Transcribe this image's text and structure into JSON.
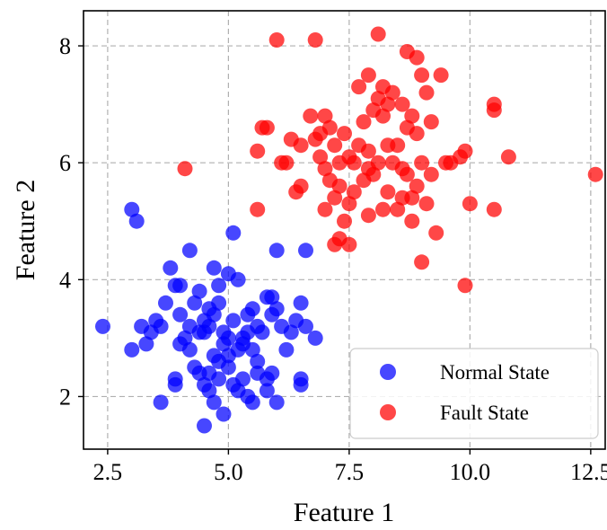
{
  "chart_data": {
    "type": "scatter",
    "title": "",
    "xlabel": "Feature 1",
    "ylabel": "Feature 2",
    "xlim": [
      2.0,
      12.8
    ],
    "ylim": [
      1.1,
      8.6
    ],
    "xticks": [
      "2.5",
      "5.0",
      "7.5",
      "10.0",
      "12.5"
    ],
    "yticks": [
      "2",
      "4",
      "6",
      "8"
    ],
    "grid": true,
    "legend_position": "lower-right",
    "series": [
      {
        "name": "Normal State",
        "color": "#0000ff",
        "points": [
          [
            2.4,
            3.2
          ],
          [
            3.0,
            5.2
          ],
          [
            3.1,
            5.0
          ],
          [
            3.0,
            2.8
          ],
          [
            3.2,
            3.2
          ],
          [
            3.3,
            2.9
          ],
          [
            3.5,
            3.3
          ],
          [
            3.6,
            3.2
          ],
          [
            3.7,
            3.6
          ],
          [
            3.6,
            1.9
          ],
          [
            3.8,
            4.2
          ],
          [
            3.9,
            3.9
          ],
          [
            4.0,
            3.9
          ],
          [
            4.0,
            3.4
          ],
          [
            4.2,
            4.5
          ],
          [
            4.3,
            3.6
          ],
          [
            4.1,
            3.0
          ],
          [
            4.2,
            2.8
          ],
          [
            3.9,
            2.3
          ],
          [
            3.9,
            2.2
          ],
          [
            4.3,
            2.5
          ],
          [
            4.4,
            2.4
          ],
          [
            4.5,
            2.2
          ],
          [
            4.5,
            3.3
          ],
          [
            4.6,
            3.2
          ],
          [
            4.6,
            3.5
          ],
          [
            4.7,
            3.4
          ],
          [
            4.5,
            3.1
          ],
          [
            4.4,
            3.1
          ],
          [
            4.7,
            4.2
          ],
          [
            4.6,
            2.1
          ],
          [
            4.5,
            1.5
          ],
          [
            4.7,
            1.9
          ],
          [
            4.8,
            2.3
          ],
          [
            4.8,
            2.6
          ],
          [
            4.9,
            2.9
          ],
          [
            4.8,
            3.6
          ],
          [
            4.9,
            3.1
          ],
          [
            4.9,
            1.7
          ],
          [
            5.0,
            3.0
          ],
          [
            5.0,
            2.7
          ],
          [
            5.0,
            4.1
          ],
          [
            5.1,
            4.8
          ],
          [
            5.1,
            2.2
          ],
          [
            5.2,
            4.0
          ],
          [
            5.2,
            2.8
          ],
          [
            5.2,
            2.1
          ],
          [
            5.3,
            3.0
          ],
          [
            5.3,
            2.9
          ],
          [
            5.4,
            3.1
          ],
          [
            5.4,
            3.4
          ],
          [
            5.3,
            2.3
          ],
          [
            5.4,
            2.0
          ],
          [
            5.5,
            1.9
          ],
          [
            5.5,
            2.8
          ],
          [
            5.6,
            3.2
          ],
          [
            5.6,
            2.4
          ],
          [
            5.7,
            3.1
          ],
          [
            5.8,
            3.7
          ],
          [
            5.8,
            2.3
          ],
          [
            5.9,
            3.7
          ],
          [
            5.9,
            3.4
          ],
          [
            5.9,
            2.4
          ],
          [
            6.0,
            4.5
          ],
          [
            6.0,
            3.5
          ],
          [
            6.1,
            3.2
          ],
          [
            6.0,
            1.9
          ],
          [
            6.4,
            3.3
          ],
          [
            6.5,
            3.6
          ],
          [
            6.5,
            2.3
          ],
          [
            6.5,
            2.2
          ],
          [
            6.6,
            4.5
          ],
          [
            6.6,
            3.2
          ],
          [
            6.8,
            3.0
          ],
          [
            4.2,
            3.2
          ],
          [
            4.4,
            3.8
          ],
          [
            4.7,
            2.7
          ],
          [
            5.1,
            3.3
          ],
          [
            5.5,
            3.5
          ],
          [
            6.2,
            2.8
          ],
          [
            4.0,
            2.9
          ],
          [
            4.6,
            2.4
          ],
          [
            5.6,
            2.6
          ],
          [
            4.8,
            3.9
          ],
          [
            5.0,
            2.5
          ],
          [
            3.4,
            3.1
          ],
          [
            5.8,
            2.1
          ],
          [
            6.3,
            3.1
          ]
        ]
      },
      {
        "name": "Fault State",
        "color": "#ff0000",
        "points": [
          [
            4.1,
            5.9
          ],
          [
            5.6,
            5.2
          ],
          [
            5.6,
            6.2
          ],
          [
            5.7,
            6.6
          ],
          [
            6.0,
            8.1
          ],
          [
            6.1,
            6.0
          ],
          [
            6.2,
            6.0
          ],
          [
            6.3,
            6.4
          ],
          [
            6.4,
            5.5
          ],
          [
            6.5,
            5.6
          ],
          [
            6.5,
            6.3
          ],
          [
            6.7,
            6.8
          ],
          [
            6.8,
            8.1
          ],
          [
            6.8,
            6.4
          ],
          [
            6.9,
            6.5
          ],
          [
            6.9,
            6.1
          ],
          [
            7.0,
            5.9
          ],
          [
            7.0,
            5.2
          ],
          [
            7.1,
            6.6
          ],
          [
            7.1,
            5.7
          ],
          [
            7.2,
            5.4
          ],
          [
            7.2,
            6.3
          ],
          [
            7.2,
            4.6
          ],
          [
            7.3,
            4.7
          ],
          [
            7.3,
            5.6
          ],
          [
            7.3,
            6.0
          ],
          [
            7.4,
            6.5
          ],
          [
            7.4,
            5.0
          ],
          [
            7.5,
            5.3
          ],
          [
            7.5,
            6.1
          ],
          [
            7.5,
            4.6
          ],
          [
            7.6,
            6.0
          ],
          [
            7.6,
            5.5
          ],
          [
            7.7,
            7.3
          ],
          [
            7.7,
            6.3
          ],
          [
            7.8,
            6.7
          ],
          [
            7.8,
            5.7
          ],
          [
            7.9,
            7.5
          ],
          [
            7.9,
            6.2
          ],
          [
            7.9,
            5.1
          ],
          [
            8.0,
            6.9
          ],
          [
            8.0,
            5.8
          ],
          [
            8.1,
            8.2
          ],
          [
            8.1,
            7.1
          ],
          [
            8.1,
            6.0
          ],
          [
            8.2,
            7.3
          ],
          [
            8.2,
            6.8
          ],
          [
            8.2,
            5.2
          ],
          [
            8.3,
            7.0
          ],
          [
            8.3,
            5.5
          ],
          [
            8.4,
            7.2
          ],
          [
            8.4,
            6.0
          ],
          [
            8.5,
            5.2
          ],
          [
            8.5,
            6.3
          ],
          [
            8.6,
            7.0
          ],
          [
            8.6,
            5.4
          ],
          [
            8.7,
            7.9
          ],
          [
            8.7,
            6.6
          ],
          [
            8.7,
            5.8
          ],
          [
            8.8,
            6.8
          ],
          [
            8.8,
            5.4
          ],
          [
            8.8,
            5.0
          ],
          [
            8.9,
            7.8
          ],
          [
            8.9,
            6.5
          ],
          [
            8.9,
            5.6
          ],
          [
            9.0,
            7.5
          ],
          [
            9.0,
            6.0
          ],
          [
            9.0,
            4.3
          ],
          [
            9.1,
            7.2
          ],
          [
            9.1,
            5.3
          ],
          [
            9.2,
            6.7
          ],
          [
            9.2,
            5.8
          ],
          [
            9.3,
            4.8
          ],
          [
            9.4,
            7.5
          ],
          [
            9.5,
            6.0
          ],
          [
            9.6,
            6.0
          ],
          [
            9.8,
            6.1
          ],
          [
            9.9,
            6.2
          ],
          [
            9.9,
            3.9
          ],
          [
            10.0,
            5.3
          ],
          [
            10.5,
            7.0
          ],
          [
            10.5,
            6.9
          ],
          [
            10.5,
            5.2
          ],
          [
            10.8,
            6.1
          ],
          [
            12.6,
            5.8
          ],
          [
            5.8,
            6.6
          ],
          [
            7.0,
            6.8
          ],
          [
            8.6,
            5.9
          ],
          [
            7.9,
            5.9
          ],
          [
            8.3,
            6.3
          ]
        ]
      }
    ]
  }
}
